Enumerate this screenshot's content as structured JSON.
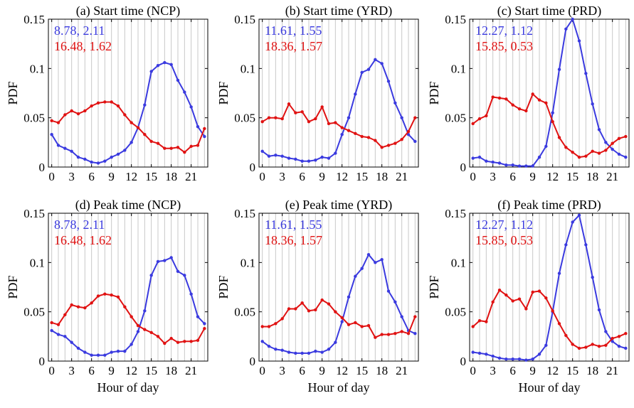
{
  "figure": {
    "ylabel": "PDF",
    "xlabel": "Hour of day",
    "colors": {
      "blue": "#3a3adf",
      "red": "#e01212",
      "grid": "#c8c8c8",
      "axis": "#000000"
    }
  },
  "chart_data": [
    {
      "type": "line",
      "title": "(a) Start time (NCP)",
      "xlabel": "",
      "ylabel": "PDF",
      "xlim": [
        -0.5,
        23.5
      ],
      "ylim": [
        0,
        0.15
      ],
      "xticks": [
        0,
        3,
        6,
        9,
        12,
        15,
        18,
        21
      ],
      "xtick_labels": [
        "0",
        "3",
        "6",
        "9",
        "12",
        "15",
        "18",
        "21"
      ],
      "yticks": [
        0,
        0.05,
        0.1,
        0.15
      ],
      "ytick_labels": [
        "0",
        "0.05",
        "0.1",
        "0.15"
      ],
      "grid": "vertical",
      "x": [
        0,
        1,
        2,
        3,
        4,
        5,
        6,
        7,
        8,
        9,
        10,
        11,
        12,
        13,
        14,
        15,
        16,
        17,
        18,
        19,
        20,
        21,
        22,
        23
      ],
      "annotations": [
        "8.78, 2.11",
        "16.48, 1.62"
      ],
      "series": [
        {
          "color": "#3a3adf",
          "values": [
            0.033,
            0.022,
            0.019,
            0.016,
            0.01,
            0.008,
            0.005,
            0.004,
            0.006,
            0.01,
            0.013,
            0.017,
            0.025,
            0.04,
            0.063,
            0.097,
            0.103,
            0.106,
            0.104,
            0.088,
            0.076,
            0.061,
            0.041,
            0.031
          ]
        },
        {
          "color": "#e01212",
          "values": [
            0.047,
            0.045,
            0.053,
            0.057,
            0.054,
            0.057,
            0.062,
            0.065,
            0.066,
            0.066,
            0.062,
            0.053,
            0.045,
            0.04,
            0.033,
            0.026,
            0.024,
            0.019,
            0.019,
            0.02,
            0.015,
            0.021,
            0.022,
            0.039
          ]
        }
      ]
    },
    {
      "type": "line",
      "title": "(b) Start time (YRD)",
      "xlabel": "",
      "ylabel": "PDF",
      "xlim": [
        -0.5,
        23.5
      ],
      "ylim": [
        0,
        0.15
      ],
      "xticks": [
        0,
        3,
        6,
        9,
        12,
        15,
        18,
        21
      ],
      "xtick_labels": [
        "0",
        "3",
        "6",
        "9",
        "12",
        "15",
        "18",
        "21"
      ],
      "yticks": [
        0,
        0.05,
        0.1,
        0.15
      ],
      "ytick_labels": [
        "0",
        "0.05",
        "0.1",
        "0.15"
      ],
      "grid": "vertical",
      "x": [
        0,
        1,
        2,
        3,
        4,
        5,
        6,
        7,
        8,
        9,
        10,
        11,
        12,
        13,
        14,
        15,
        16,
        17,
        18,
        19,
        20,
        21,
        22,
        23
      ],
      "annotations": [
        "11.61, 1.55",
        "18.36, 1.57"
      ],
      "series": [
        {
          "color": "#3a3adf",
          "values": [
            0.016,
            0.011,
            0.012,
            0.011,
            0.009,
            0.008,
            0.006,
            0.006,
            0.007,
            0.01,
            0.009,
            0.014,
            0.033,
            0.05,
            0.074,
            0.096,
            0.099,
            0.109,
            0.105,
            0.087,
            0.065,
            0.05,
            0.033,
            0.026
          ]
        },
        {
          "color": "#e01212",
          "values": [
            0.046,
            0.05,
            0.05,
            0.049,
            0.064,
            0.055,
            0.056,
            0.046,
            0.049,
            0.061,
            0.044,
            0.045,
            0.04,
            0.037,
            0.034,
            0.031,
            0.03,
            0.027,
            0.02,
            0.022,
            0.024,
            0.028,
            0.036,
            0.05
          ]
        }
      ]
    },
    {
      "type": "line",
      "title": "(c) Start time (PRD)",
      "xlabel": "",
      "ylabel": "PDF",
      "xlim": [
        -0.5,
        23.5
      ],
      "ylim": [
        0,
        0.15
      ],
      "xticks": [
        0,
        3,
        6,
        9,
        12,
        15,
        18,
        21
      ],
      "xtick_labels": [
        "0",
        "3",
        "6",
        "9",
        "12",
        "15",
        "18",
        "21"
      ],
      "yticks": [
        0,
        0.05,
        0.1,
        0.15
      ],
      "ytick_labels": [
        "0",
        "0.05",
        "0.1",
        "0.15"
      ],
      "grid": "vertical",
      "x": [
        0,
        1,
        2,
        3,
        4,
        5,
        6,
        7,
        8,
        9,
        10,
        11,
        12,
        13,
        14,
        15,
        16,
        17,
        18,
        19,
        20,
        21,
        22,
        23
      ],
      "annotations": [
        "12.27, 1.12",
        "15.85, 0.53"
      ],
      "series": [
        {
          "color": "#3a3adf",
          "values": [
            0.009,
            0.01,
            0.006,
            0.005,
            0.004,
            0.002,
            0.002,
            0.001,
            0.001,
            0.001,
            0.01,
            0.021,
            0.055,
            0.099,
            0.14,
            0.15,
            0.128,
            0.095,
            0.064,
            0.038,
            0.025,
            0.018,
            0.013,
            0.01
          ]
        },
        {
          "color": "#e01212",
          "values": [
            0.044,
            0.049,
            0.052,
            0.071,
            0.07,
            0.069,
            0.063,
            0.059,
            0.057,
            0.074,
            0.068,
            0.065,
            0.046,
            0.03,
            0.02,
            0.015,
            0.01,
            0.011,
            0.016,
            0.014,
            0.017,
            0.024,
            0.029,
            0.031
          ]
        }
      ]
    },
    {
      "type": "line",
      "title": "(d) Peak time (NCP)",
      "xlabel": "Hour of day",
      "ylabel": "PDF",
      "xlim": [
        -0.5,
        23.5
      ],
      "ylim": [
        0,
        0.15
      ],
      "xticks": [
        0,
        3,
        6,
        9,
        12,
        15,
        18,
        21
      ],
      "xtick_labels": [
        "0",
        "3",
        "6",
        "9",
        "12",
        "15",
        "18",
        "21"
      ],
      "yticks": [
        0,
        0.05,
        0.1,
        0.15
      ],
      "ytick_labels": [
        "0",
        "0.05",
        "0.1",
        "0.15"
      ],
      "grid": "vertical",
      "x": [
        0,
        1,
        2,
        3,
        4,
        5,
        6,
        7,
        8,
        9,
        10,
        11,
        12,
        13,
        14,
        15,
        16,
        17,
        18,
        19,
        20,
        21,
        22,
        23
      ],
      "annotations": [
        "8.78, 2.11",
        "16.48, 1.62"
      ],
      "series": [
        {
          "color": "#3a3adf",
          "values": [
            0.031,
            0.027,
            0.025,
            0.019,
            0.013,
            0.009,
            0.006,
            0.006,
            0.006,
            0.009,
            0.01,
            0.01,
            0.017,
            0.03,
            0.051,
            0.087,
            0.101,
            0.102,
            0.105,
            0.091,
            0.087,
            0.068,
            0.045,
            0.038
          ]
        },
        {
          "color": "#e01212",
          "values": [
            0.039,
            0.037,
            0.047,
            0.057,
            0.055,
            0.054,
            0.059,
            0.066,
            0.068,
            0.067,
            0.065,
            0.055,
            0.045,
            0.036,
            0.032,
            0.029,
            0.025,
            0.018,
            0.023,
            0.019,
            0.02,
            0.02,
            0.021,
            0.033
          ]
        }
      ]
    },
    {
      "type": "line",
      "title": "(e) Peak time (YRD)",
      "xlabel": "Hour of day",
      "ylabel": "PDF",
      "xlim": [
        -0.5,
        23.5
      ],
      "ylim": [
        0,
        0.15
      ],
      "xticks": [
        0,
        3,
        6,
        9,
        12,
        15,
        18,
        21
      ],
      "xtick_labels": [
        "0",
        "3",
        "6",
        "9",
        "12",
        "15",
        "18",
        "21"
      ],
      "yticks": [
        0,
        0.05,
        0.1,
        0.15
      ],
      "ytick_labels": [
        "0",
        "0.05",
        "0.1",
        "0.15"
      ],
      "grid": "vertical",
      "x": [
        0,
        1,
        2,
        3,
        4,
        5,
        6,
        7,
        8,
        9,
        10,
        11,
        12,
        13,
        14,
        15,
        16,
        17,
        18,
        19,
        20,
        21,
        22,
        23
      ],
      "annotations": [
        "11.61, 1.55",
        "18.36, 1.57"
      ],
      "series": [
        {
          "color": "#3a3adf",
          "values": [
            0.02,
            0.015,
            0.012,
            0.011,
            0.009,
            0.008,
            0.008,
            0.008,
            0.01,
            0.009,
            0.012,
            0.019,
            0.04,
            0.065,
            0.086,
            0.094,
            0.108,
            0.1,
            0.103,
            0.071,
            0.06,
            0.045,
            0.031,
            0.028
          ]
        },
        {
          "color": "#e01212",
          "values": [
            0.035,
            0.035,
            0.038,
            0.043,
            0.053,
            0.053,
            0.059,
            0.051,
            0.052,
            0.062,
            0.058,
            0.05,
            0.044,
            0.037,
            0.039,
            0.035,
            0.036,
            0.024,
            0.027,
            0.027,
            0.028,
            0.03,
            0.028,
            0.045
          ]
        }
      ]
    },
    {
      "type": "line",
      "title": "(f) Peak time (PRD)",
      "xlabel": "Hour of day",
      "ylabel": "PDF",
      "xlim": [
        -0.5,
        23.5
      ],
      "ylim": [
        0,
        0.15
      ],
      "xticks": [
        0,
        3,
        6,
        9,
        12,
        15,
        18,
        21
      ],
      "xtick_labels": [
        "0",
        "3",
        "6",
        "9",
        "12",
        "15",
        "18",
        "21"
      ],
      "yticks": [
        0,
        0.05,
        0.1,
        0.15
      ],
      "ytick_labels": [
        "0",
        "0.05",
        "0.1",
        "0.15"
      ],
      "grid": "vertical",
      "x": [
        0,
        1,
        2,
        3,
        4,
        5,
        6,
        7,
        8,
        9,
        10,
        11,
        12,
        13,
        14,
        15,
        16,
        17,
        18,
        19,
        20,
        21,
        22,
        23
      ],
      "annotations": [
        "12.27, 1.12",
        "15.85, 0.53"
      ],
      "series": [
        {
          "color": "#3a3adf",
          "values": [
            0.009,
            0.008,
            0.007,
            0.005,
            0.003,
            0.002,
            0.002,
            0.002,
            0.001,
            0.002,
            0.007,
            0.016,
            0.05,
            0.089,
            0.118,
            0.141,
            0.148,
            0.118,
            0.085,
            0.052,
            0.03,
            0.02,
            0.015,
            0.013
          ]
        },
        {
          "color": "#e01212",
          "values": [
            0.035,
            0.041,
            0.04,
            0.06,
            0.072,
            0.067,
            0.061,
            0.063,
            0.053,
            0.07,
            0.071,
            0.064,
            0.051,
            0.038,
            0.026,
            0.017,
            0.013,
            0.014,
            0.017,
            0.015,
            0.016,
            0.023,
            0.025,
            0.028
          ]
        }
      ]
    }
  ]
}
